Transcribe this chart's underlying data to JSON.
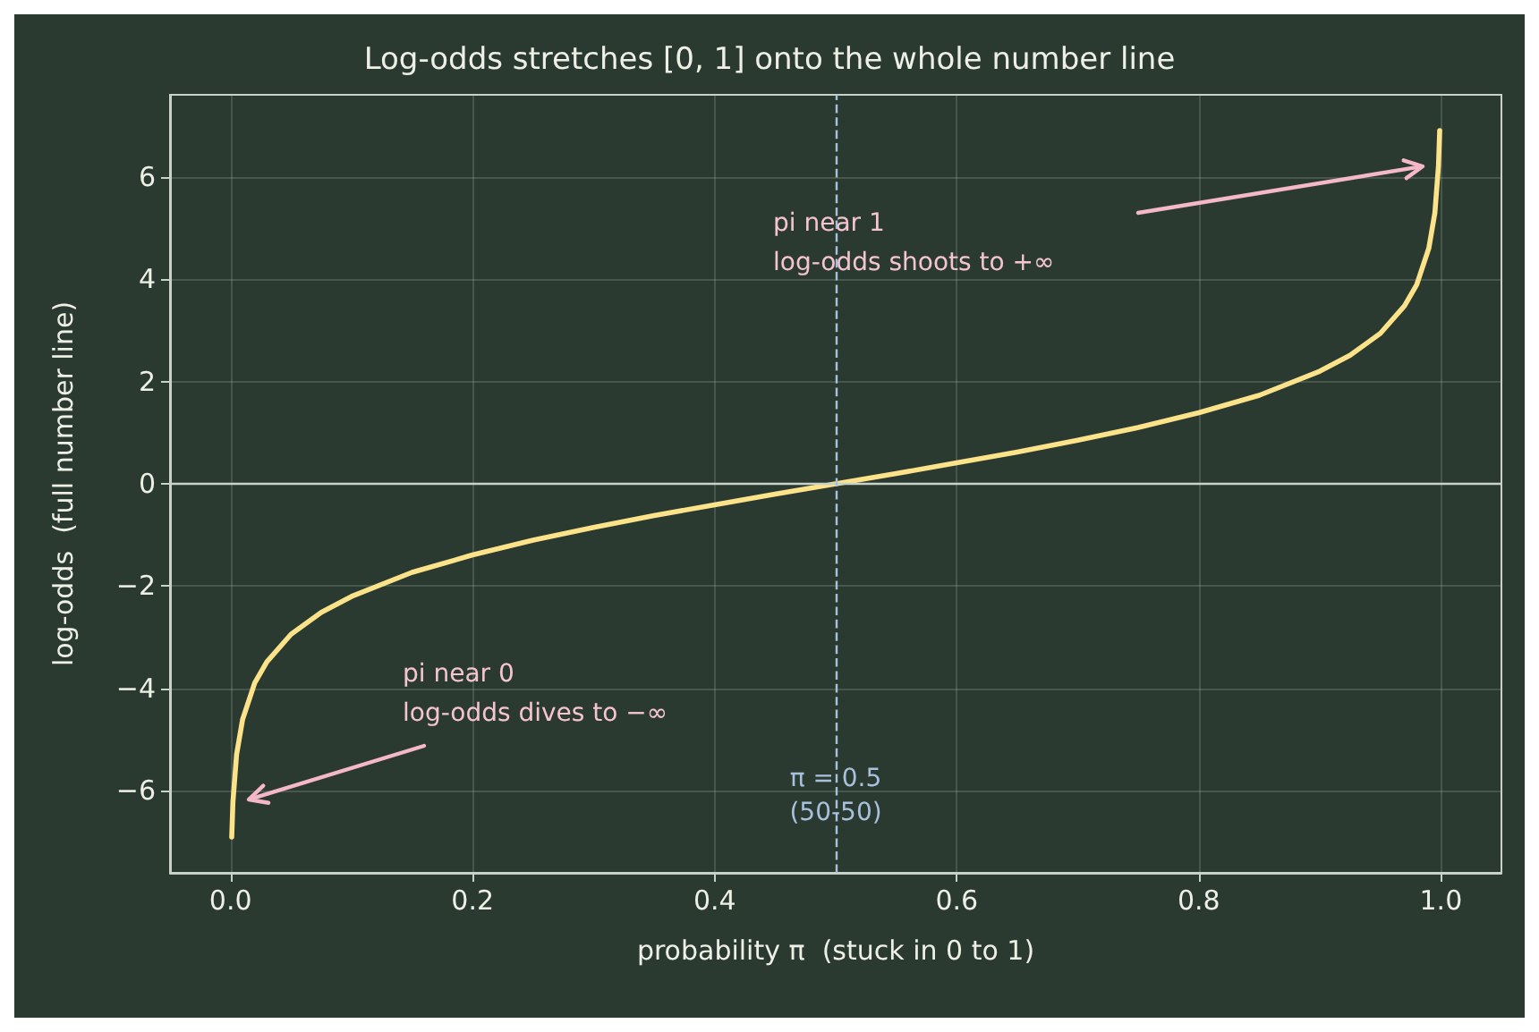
{
  "chart_data": {
    "type": "line",
    "title": "Log-odds stretches [0, 1] onto the whole number line",
    "xlabel": "probability π  (stuck in 0 to 1)",
    "ylabel": "log-odds  (full number line)",
    "x": [
      0.001,
      0.002,
      0.005,
      0.01,
      0.02,
      0.03,
      0.05,
      0.075,
      0.1,
      0.15,
      0.2,
      0.25,
      0.3,
      0.35,
      0.4,
      0.45,
      0.5,
      0.55,
      0.6,
      0.65,
      0.7,
      0.75,
      0.8,
      0.85,
      0.9,
      0.925,
      0.95,
      0.97,
      0.98,
      0.99,
      0.995,
      0.998,
      0.999
    ],
    "series": [
      {
        "color": "#fce38a",
        "values": [
          -6.9,
          -6.21,
          -5.29,
          -4.6,
          -3.89,
          -3.48,
          -2.94,
          -2.51,
          -2.2,
          -1.73,
          -1.39,
          -1.1,
          -0.85,
          -0.62,
          -0.41,
          -0.2,
          0,
          0.2,
          0.41,
          0.62,
          0.85,
          1.1,
          1.39,
          1.73,
          2.2,
          2.51,
          2.94,
          3.48,
          3.89,
          4.6,
          5.29,
          6.21,
          6.9
        ]
      }
    ],
    "xlim": [
      -0.05,
      1.05
    ],
    "ylim": [
      -7.6,
      7.6
    ],
    "xticks": [
      {
        "value": 0,
        "label": "0.0"
      },
      0.2,
      0.4,
      0.6,
      0.8,
      {
        "value": 1,
        "label": "1.0"
      }
    ],
    "yticks": [
      {
        "value": -6,
        "label": "−6"
      },
      {
        "value": -4,
        "label": "−4"
      },
      {
        "value": -2,
        "label": "−2"
      },
      0,
      2,
      4,
      6
    ],
    "ref_lines": [
      {
        "axis": "y",
        "value": 0,
        "color": "#c8d2c8",
        "line_style": "solid"
      },
      {
        "axis": "x",
        "value": 0.5,
        "label": "π = 0.5\n(50-50)",
        "color": "#a8c0dc",
        "line_style": "dashed"
      }
    ],
    "annotations": [
      "pi near 1\nlog-odds shoots to +∞",
      "pi near 0\nlog-odds dives to −∞"
    ],
    "grid": true,
    "marker": "none",
    "line_style": "solid"
  }
}
